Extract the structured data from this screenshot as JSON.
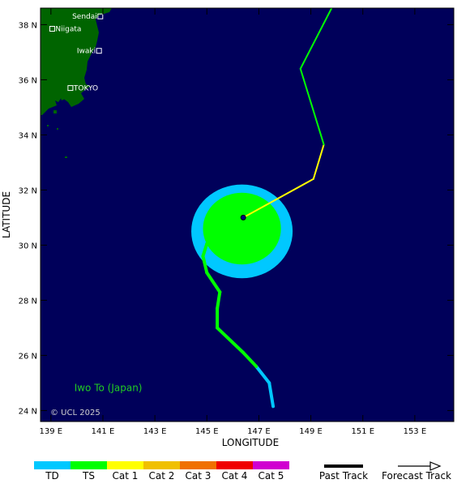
{
  "map": {
    "lon_range": [
      138.6,
      154.5
    ],
    "lat_range": [
      23.6,
      38.6
    ],
    "xlabel": "LONGITUDE",
    "ylabel": "LATITUDE",
    "lon_ticks": [
      {
        "value": 139,
        "label": "139 E"
      },
      {
        "value": 141,
        "label": "141 E"
      },
      {
        "value": 143,
        "label": "143 E"
      },
      {
        "value": 145,
        "label": "145 E"
      },
      {
        "value": 147,
        "label": "147 E"
      },
      {
        "value": 149,
        "label": "149 E"
      },
      {
        "value": 151,
        "label": "151 E"
      },
      {
        "value": 153,
        "label": "153 E"
      }
    ],
    "lat_ticks": [
      {
        "value": 24,
        "label": "24 N"
      },
      {
        "value": 26,
        "label": "26 N"
      },
      {
        "value": 28,
        "label": "28 N"
      },
      {
        "value": 30,
        "label": "30 N"
      },
      {
        "value": 32,
        "label": "32 N"
      },
      {
        "value": 34,
        "label": "34 N"
      },
      {
        "value": 36,
        "label": "36 N"
      },
      {
        "value": 38,
        "label": "38 N"
      }
    ],
    "ocean_color": "#00005a",
    "land_color": "#006400",
    "cities": [
      {
        "name": "Sendai",
        "lon": 140.9,
        "lat": 38.3,
        "label_side": "left"
      },
      {
        "name": "Niigata",
        "lon": 139.05,
        "lat": 37.85,
        "label_side": "right"
      },
      {
        "name": "Iwaki",
        "lon": 140.85,
        "lat": 37.05,
        "label_side": "left"
      },
      {
        "name": "TOKYO",
        "lon": 139.75,
        "lat": 35.7,
        "label_side": "right"
      }
    ],
    "island_label": {
      "text": "Iwo To (Japan)",
      "lon": 139.9,
      "lat": 24.7
    },
    "copyright": "© UCL 2025"
  },
  "storm": {
    "current_position": {
      "lon": 146.4,
      "lat": 31.0
    },
    "wind_fields": [
      {
        "category": "TD",
        "color": "#00c8ff",
        "center_lon": 146.35,
        "center_lat": 30.5,
        "r_lon": 1.95,
        "r_lat": 1.7
      },
      {
        "category": "TS",
        "color": "#00ff00",
        "center_lon": 146.35,
        "center_lat": 30.6,
        "r_lon": 1.5,
        "r_lat": 1.3
      }
    ],
    "past_track": [
      {
        "lon": 147.55,
        "lat": 24.15,
        "cat": "TD"
      },
      {
        "lon": 147.4,
        "lat": 25.0,
        "cat": "TD"
      },
      {
        "lon": 146.9,
        "lat": 25.6,
        "cat": "TD"
      },
      {
        "lon": 146.4,
        "lat": 26.1,
        "cat": "TS"
      },
      {
        "lon": 145.4,
        "lat": 27.0,
        "cat": "TS"
      },
      {
        "lon": 145.4,
        "lat": 27.7,
        "cat": "TS"
      },
      {
        "lon": 145.5,
        "lat": 28.3,
        "cat": "TS"
      },
      {
        "lon": 145.0,
        "lat": 29.0,
        "cat": "TS"
      },
      {
        "lon": 144.85,
        "lat": 29.6,
        "cat": "TS"
      },
      {
        "lon": 145.0,
        "lat": 30.05,
        "cat": "TS"
      },
      {
        "lon": 145.3,
        "lat": 30.2,
        "cat": "TS"
      }
    ],
    "forecast_track": [
      {
        "lon": 145.3,
        "lat": 30.2,
        "cat": "TS"
      },
      {
        "lon": 146.4,
        "lat": 31.0,
        "cat": "TS"
      },
      {
        "lon": 149.1,
        "lat": 32.4,
        "cat": "Cat 1"
      },
      {
        "lon": 149.5,
        "lat": 33.65,
        "cat": "Cat 1"
      },
      {
        "lon": 148.6,
        "lat": 36.4,
        "cat": "TS"
      },
      {
        "lon": 149.8,
        "lat": 38.6,
        "cat": "TS"
      }
    ]
  },
  "legend": {
    "categories": [
      {
        "label": "TD",
        "color": "#00c8ff"
      },
      {
        "label": "TS",
        "color": "#00ff00"
      },
      {
        "label": "Cat 1",
        "color": "#ffff00"
      },
      {
        "label": "Cat 2",
        "color": "#f0c000"
      },
      {
        "label": "Cat 3",
        "color": "#f07000"
      },
      {
        "label": "Cat 4",
        "color": "#f00000"
      },
      {
        "label": "Cat 5",
        "color": "#d000d0"
      }
    ],
    "past_track_label": "Past Track",
    "forecast_track_label": "Forecast Track"
  }
}
